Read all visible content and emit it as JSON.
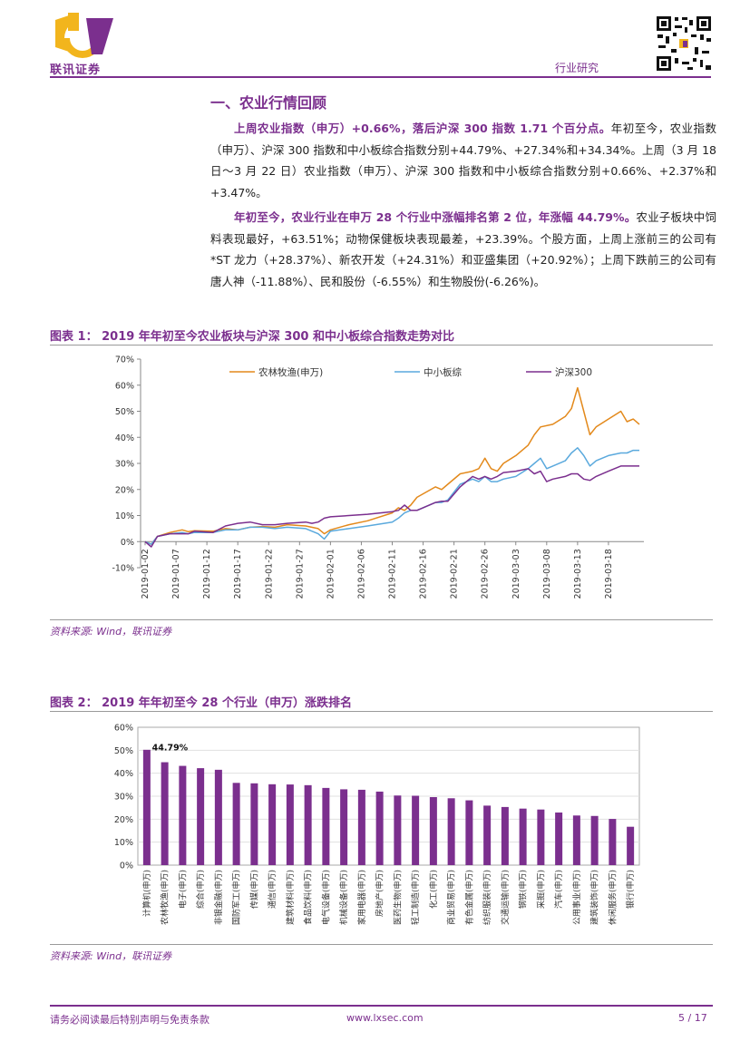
{
  "header": {
    "logo_text": "联讯证券",
    "section_label": "行业研究"
  },
  "section": {
    "title": "一、农业行情回顾",
    "p1_bold": "上周农业指数（申万）+0.66%，落后沪深 300 指数 1.71 个百分点。",
    "p1_rest": "年初至今，农业指数（申万）、沪深 300 指数和中小板综合指数分别+44.79%、+27.34%和+34.34%。上周（3 月 18 日～3 月 22 日）农业指数（申万）、沪深 300 指数和中小板综合指数分别+0.66%、+2.37%和+3.47%。",
    "p2_bold": "年初至今，农业行业在申万 28 个行业中涨幅排名第 2 位，年涨幅 44.79%。",
    "p2_rest": "农业子板块中饲料表现最好，+63.51%；动物保健板块表现最差，+23.39%。个股方面，上周上涨前三的公司有*ST 龙力（+28.37%）、新农开发（+24.31%）和亚盛集团（+20.92%）；上周下跌前三的公司有唐人神（-11.88%）、民和股份（-6.55%）和生物股份(-6.26%)。"
  },
  "figure1": {
    "title": "图表 1：   2019 年年初至今农业板块与沪深 300 和中小板综合指数走势对比",
    "source": "资料来源: Wind，联讯证券"
  },
  "figure2": {
    "title": "图表 2：   2019 年年初至今 28 个行业（申万）涨跌排名",
    "source": "资料来源: Wind，联讯证券"
  },
  "chart_data": [
    {
      "type": "line",
      "title": "2019 年年初至今农业板块与沪深 300 和中小板综合指数走势对比",
      "ylim": [
        -10,
        70
      ],
      "yticks": [
        -10,
        0,
        10,
        20,
        30,
        40,
        50,
        60,
        70
      ],
      "ytick_labels": [
        "-10%",
        "0%",
        "10%",
        "20%",
        "30%",
        "40%",
        "50%",
        "60%",
        "70%"
      ],
      "x": [
        "2019-01-02",
        "2019-01-07",
        "2019-01-12",
        "2019-01-17",
        "2019-01-22",
        "2019-01-27",
        "2019-02-01",
        "2019-02-06",
        "2019-02-11",
        "2019-02-16",
        "2019-02-21",
        "2019-02-26",
        "2019-03-03",
        "2019-03-08",
        "2019-03-13",
        "2019-03-18"
      ],
      "series": [
        {
          "name": "农林牧渔(申万)",
          "color": "#e3891b",
          "points": [
            [
              0,
              0
            ],
            [
              1,
              -1
            ],
            [
              2,
              2
            ],
            [
              4,
              3.5
            ],
            [
              6,
              4.5
            ],
            [
              7,
              3.8
            ],
            [
              8,
              4.2
            ],
            [
              11,
              4
            ],
            [
              13,
              5
            ],
            [
              15,
              4.5
            ],
            [
              17,
              5.5
            ],
            [
              19,
              5.8
            ],
            [
              21,
              5.5
            ],
            [
              23,
              6.5
            ],
            [
              26,
              6
            ],
            [
              28,
              5
            ],
            [
              29,
              3
            ],
            [
              30,
              4.5
            ],
            [
              33,
              6.5
            ],
            [
              36,
              8
            ],
            [
              40,
              11
            ],
            [
              41,
              13
            ],
            [
              42,
              12
            ],
            [
              43,
              14
            ],
            [
              44,
              17
            ],
            [
              47,
              21
            ],
            [
              48,
              20
            ],
            [
              49,
              22
            ],
            [
              51,
              26
            ],
            [
              53,
              27
            ],
            [
              54,
              28
            ],
            [
              55,
              32
            ],
            [
              56,
              28
            ],
            [
              57,
              27
            ],
            [
              58,
              30
            ],
            [
              60,
              33
            ],
            [
              62,
              37
            ],
            [
              63,
              41
            ],
            [
              64,
              44
            ],
            [
              66,
              45
            ],
            [
              68,
              48
            ],
            [
              69,
              51
            ],
            [
              70,
              59
            ],
            [
              71,
              50
            ],
            [
              72,
              41
            ],
            [
              73,
              44
            ],
            [
              75,
              47
            ],
            [
              77,
              50
            ],
            [
              78,
              46
            ],
            [
              79,
              47
            ],
            [
              80,
              45
            ]
          ]
        },
        {
          "name": "中小板综",
          "color": "#5aa9dd",
          "points": [
            [
              0,
              0
            ],
            [
              1,
              -1
            ],
            [
              2,
              2
            ],
            [
              4,
              3
            ],
            [
              6,
              3.5
            ],
            [
              7,
              3
            ],
            [
              8,
              3.5
            ],
            [
              11,
              3.5
            ],
            [
              13,
              4.5
            ],
            [
              15,
              4.5
            ],
            [
              17,
              5.5
            ],
            [
              19,
              5.5
            ],
            [
              21,
              5
            ],
            [
              23,
              5.5
            ],
            [
              26,
              5
            ],
            [
              28,
              3
            ],
            [
              29,
              1
            ],
            [
              30,
              4
            ],
            [
              33,
              5
            ],
            [
              36,
              6
            ],
            [
              40,
              7.5
            ],
            [
              41,
              9
            ],
            [
              42,
              11
            ],
            [
              43,
              12
            ],
            [
              44,
              12
            ],
            [
              47,
              15
            ],
            [
              48,
              15
            ],
            [
              49,
              16
            ],
            [
              51,
              22
            ],
            [
              53,
              24
            ],
            [
              54,
              23
            ],
            [
              55,
              25
            ],
            [
              56,
              23
            ],
            [
              57,
              23
            ],
            [
              58,
              24
            ],
            [
              60,
              25
            ],
            [
              62,
              28
            ],
            [
              63,
              30
            ],
            [
              64,
              32
            ],
            [
              65,
              28
            ],
            [
              66,
              29
            ],
            [
              68,
              31
            ],
            [
              69,
              34
            ],
            [
              70,
              36
            ],
            [
              71,
              33
            ],
            [
              72,
              29
            ],
            [
              73,
              31
            ],
            [
              75,
              33
            ],
            [
              77,
              34
            ],
            [
              78,
              34
            ],
            [
              79,
              35
            ],
            [
              80,
              35
            ]
          ]
        },
        {
          "name": "沪深300",
          "color": "#7b2f8e",
          "points": [
            [
              0,
              0
            ],
            [
              1,
              -2
            ],
            [
              2,
              2
            ],
            [
              4,
              3
            ],
            [
              6,
              3
            ],
            [
              7,
              3
            ],
            [
              8,
              4
            ],
            [
              11,
              3.5
            ],
            [
              13,
              6
            ],
            [
              15,
              7
            ],
            [
              17,
              7.5
            ],
            [
              19,
              6.5
            ],
            [
              21,
              6.5
            ],
            [
              23,
              7
            ],
            [
              26,
              7.5
            ],
            [
              27,
              7
            ],
            [
              28,
              7.5
            ],
            [
              29,
              9
            ],
            [
              30,
              9.5
            ],
            [
              33,
              10
            ],
            [
              36,
              10.5
            ],
            [
              40,
              11.5
            ],
            [
              41,
              12
            ],
            [
              42,
              14
            ],
            [
              43,
              12
            ],
            [
              44,
              12
            ],
            [
              47,
              15
            ],
            [
              48,
              15.5
            ],
            [
              49,
              15.5
            ],
            [
              51,
              21
            ],
            [
              53,
              25
            ],
            [
              54,
              24
            ],
            [
              55,
              25
            ],
            [
              56,
              24
            ],
            [
              57,
              25
            ],
            [
              58,
              26.5
            ],
            [
              60,
              27
            ],
            [
              62,
              28
            ],
            [
              63,
              26
            ],
            [
              64,
              27
            ],
            [
              65,
              23
            ],
            [
              66,
              24
            ],
            [
              68,
              25
            ],
            [
              69,
              26
            ],
            [
              70,
              26
            ],
            [
              71,
              24
            ],
            [
              72,
              23.5
            ],
            [
              73,
              25
            ],
            [
              75,
              27
            ],
            [
              77,
              29
            ],
            [
              78,
              29
            ],
            [
              79,
              29
            ],
            [
              80,
              29
            ]
          ]
        }
      ]
    },
    {
      "type": "bar",
      "title": "2019 年年初至今 28 个行业（申万）涨跌排名",
      "ylim": [
        0,
        60
      ],
      "yticks": [
        0,
        10,
        20,
        30,
        40,
        50,
        60
      ],
      "ytick_labels": [
        "0%",
        "10%",
        "20%",
        "30%",
        "40%",
        "50%",
        "60%"
      ],
      "bar_color": "#7b2f8e",
      "data_label": "44.79%",
      "categories": [
        "计算机(申万)",
        "农林牧渔(申万)",
        "电子(申万)",
        "综合(申万)",
        "非银金融(申万)",
        "国防军工(申万)",
        "传媒(申万)",
        "通信(申万)",
        "建筑材料(申万)",
        "食品饮料(申万)",
        "电气设备(申万)",
        "机械设备(申万)",
        "家用电器(申万)",
        "房地产(申万)",
        "医药生物(申万)",
        "轻工制造(申万)",
        "化工(申万)",
        "商业贸易(申万)",
        "有色金属(申万)",
        "纺织服装(申万)",
        "交通运输(申万)",
        "钢铁(申万)",
        "采掘(申万)",
        "汽车(申万)",
        "公用事业(申万)",
        "建筑装饰(申万)",
        "休闲服务(申万)",
        "银行(申万)"
      ],
      "values": [
        50.2,
        44.79,
        43.2,
        42.2,
        41.5,
        35.8,
        35.6,
        35.2,
        35.1,
        34.8,
        33.6,
        33.0,
        32.8,
        32.0,
        30.3,
        30.2,
        29.6,
        29.1,
        28.2,
        25.9,
        25.3,
        24.6,
        24.2,
        22.9,
        21.6,
        21.4,
        20.1,
        16.7
      ]
    }
  ],
  "footer": {
    "disclaimer": "请务必阅读最后特别声明与免责条款",
    "website": "www.lxsec.com",
    "page": "5 / 17"
  }
}
